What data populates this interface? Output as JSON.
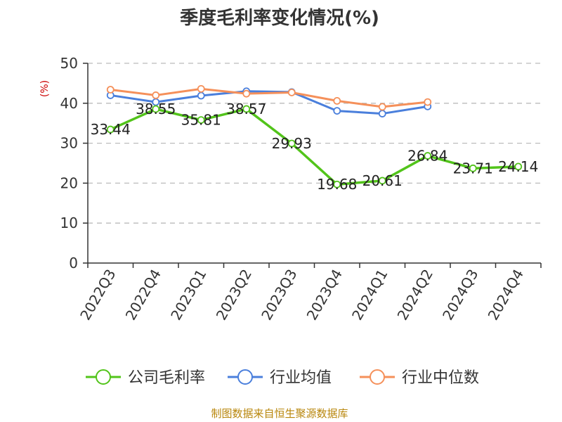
{
  "chart_data": {
    "type": "line",
    "title": "季度毛利率变化情况(%)",
    "ylabel": "(%)",
    "xlabel": "",
    "categories": [
      "2022Q3",
      "2022Q4",
      "2023Q1",
      "2023Q2",
      "2023Q3",
      "2023Q4",
      "2024Q1",
      "2024Q2",
      "2024Q3",
      "2024Q4"
    ],
    "ylim": [
      0,
      50
    ],
    "yticks": [
      0,
      10,
      20,
      30,
      40,
      50
    ],
    "grid": true,
    "legend_position": "bottom",
    "series": [
      {
        "name": "公司毛利率",
        "color": "#52c41a",
        "values": [
          33.44,
          38.55,
          35.81,
          38.57,
          29.93,
          19.68,
          20.61,
          26.84,
          23.71,
          24.14
        ],
        "labels": [
          "33.44",
          "38.55",
          "35.81",
          "38.57",
          "29.93",
          "19.68",
          "20.61",
          "26.84",
          "23.71",
          "24.14"
        ]
      },
      {
        "name": "行业均值",
        "color": "#4a7fdc",
        "values": [
          42.0,
          40.3,
          41.9,
          43.0,
          42.8,
          38.1,
          37.4,
          39.2,
          null,
          null
        ]
      },
      {
        "name": "行业中位数",
        "color": "#f5905a",
        "values": [
          43.4,
          42.0,
          43.6,
          42.4,
          42.7,
          40.6,
          39.1,
          40.3,
          null,
          null
        ]
      }
    ],
    "source": "制图数据来自恒生聚源数据库"
  }
}
